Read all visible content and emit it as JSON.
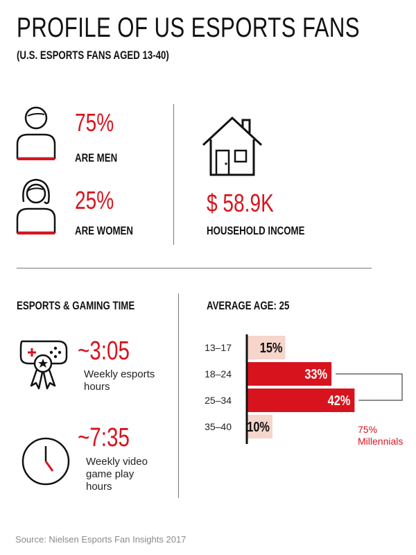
{
  "header": {
    "title": "PROFILE OF US ESPORTS FANS",
    "subtitle": "(U.S. ESPORTS FANS AGED 13-40)"
  },
  "gender": {
    "men_pct": "75%",
    "men_label": "ARE MEN",
    "women_pct": "25%",
    "women_label": "ARE WOMEN"
  },
  "income": {
    "value": "$ 58.9K",
    "label": "HOUSEHOLD INCOME"
  },
  "gaming_time": {
    "heading": "ESPORTS & GAMING TIME",
    "esports_value": "~3:05",
    "esports_line1": "Weekly esports",
    "esports_line2": "hours",
    "video_value": "~7:35",
    "video_line1": "Weekly video",
    "video_line2": "game play",
    "video_line3": "hours"
  },
  "age": {
    "heading": "AVERAGE AGE: 25",
    "bracket_pct": "75%",
    "bracket_label": "Millennials"
  },
  "colors": {
    "accent": "#d7141e",
    "light": "#f6d5cb"
  },
  "chart_data": {
    "type": "bar",
    "orientation": "horizontal",
    "categories": [
      "13–17",
      "18–24",
      "25–34",
      "35–40"
    ],
    "values": [
      15,
      33,
      42,
      10
    ],
    "data_labels": [
      "15%",
      "33%",
      "42%",
      "10%"
    ],
    "highlight": [
      false,
      true,
      true,
      false
    ],
    "annotation": "75% Millennials"
  },
  "footer": {
    "source": "Source: Nielsen Esports Fan Insights 2017"
  }
}
